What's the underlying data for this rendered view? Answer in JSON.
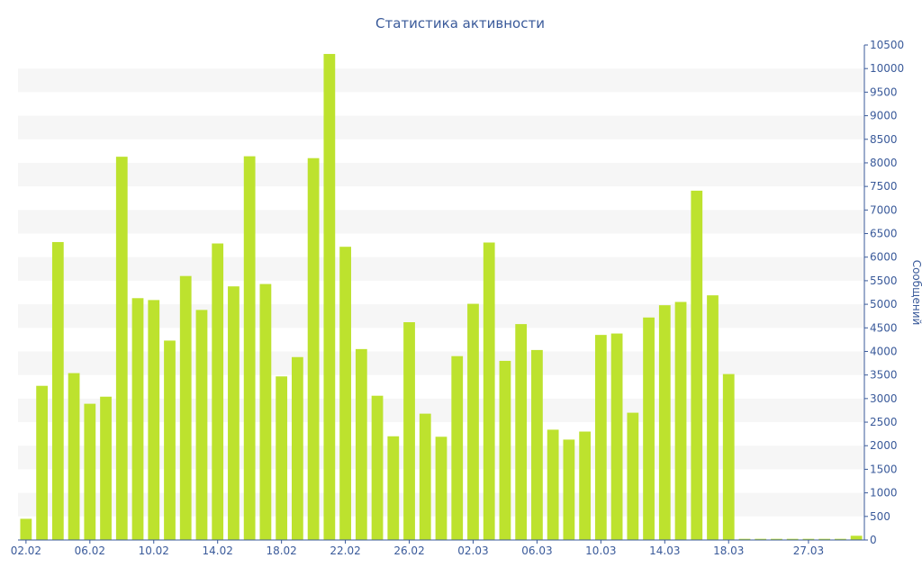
{
  "chart_data": {
    "type": "bar",
    "title": "Статистика активности",
    "xlabel": "",
    "ylabel": "Сообщений",
    "ylim": [
      0,
      10500
    ],
    "y_ticks": [
      0,
      500,
      1000,
      1500,
      2000,
      2500,
      3000,
      3500,
      4000,
      4500,
      5000,
      5500,
      6000,
      6500,
      7000,
      7500,
      8000,
      8500,
      9000,
      9500,
      10000,
      10500
    ],
    "y_axis_side": "right",
    "x_tick_labels": [
      "02.02",
      "06.02",
      "10.02",
      "14.02",
      "18.02",
      "22.02",
      "26.02",
      "02.03",
      "06.03",
      "10.03",
      "14.03",
      "18.03",
      "27.03"
    ],
    "x_tick_label_positions": [
      0,
      4,
      8,
      12,
      16,
      20,
      24,
      28,
      32,
      36,
      40,
      44,
      49
    ],
    "grid": "alternating horizontal bands",
    "bar_color": "#bde22e",
    "values": [
      450,
      3270,
      6320,
      3540,
      2890,
      3040,
      8130,
      5130,
      5090,
      4230,
      5600,
      4880,
      6290,
      5380,
      8140,
      5430,
      3470,
      3880,
      8100,
      10310,
      6220,
      4050,
      3060,
      2200,
      4620,
      2680,
      2190,
      3900,
      5010,
      6310,
      3800,
      4580,
      4030,
      2340,
      2130,
      2300,
      4350,
      4380,
      2700,
      4720,
      4980,
      5050,
      7410,
      5190,
      3520,
      25,
      25,
      25,
      25,
      25,
      25,
      25,
      90
    ]
  }
}
